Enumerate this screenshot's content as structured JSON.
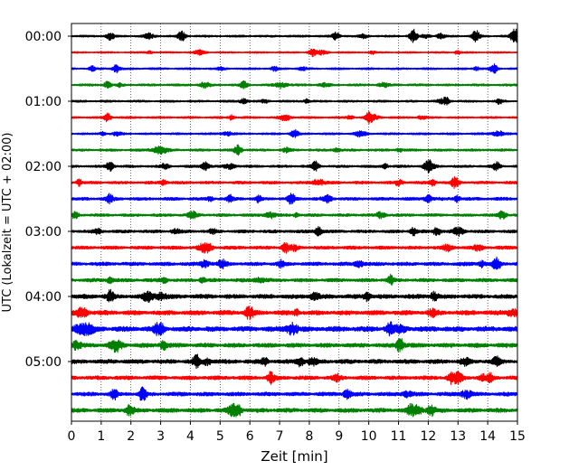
{
  "chart_data": {
    "type": "line",
    "title": "",
    "xlabel": "Zeit  [min]",
    "ylabel": "UTC (Lokalzeit = UTC + 02:00)",
    "xlim": [
      0,
      15
    ],
    "x_ticks": [
      0,
      1,
      2,
      3,
      4,
      5,
      6,
      7,
      8,
      9,
      10,
      11,
      12,
      13,
      14,
      15
    ],
    "y_ticks": [
      "00:00",
      "01:00",
      "02:00",
      "03:00",
      "04:00",
      "05:00"
    ],
    "trace_interval_min": 15,
    "trace_count": 24,
    "first_trace": "00:00",
    "grid": "vertical dotted at each minute",
    "trace_colors": [
      "#000000",
      "#ff0000",
      "#0000ff",
      "#008000"
    ],
    "noise_amplitude_by_trace": [
      0.15,
      0.12,
      0.14,
      0.16,
      0.15,
      0.15,
      0.15,
      0.17,
      0.18,
      0.2,
      0.22,
      0.2,
      0.22,
      0.24,
      0.26,
      0.25,
      0.3,
      0.32,
      0.36,
      0.3,
      0.3,
      0.28,
      0.28,
      0.3
    ],
    "events": [
      {
        "trace": 0,
        "t": 1.3,
        "amp": 0.5
      },
      {
        "trace": 0,
        "t": 3.7,
        "amp": 0.7
      },
      {
        "trace": 0,
        "t": 8.9,
        "amp": 0.5
      },
      {
        "trace": 0,
        "t": 11.5,
        "amp": 0.9
      },
      {
        "trace": 0,
        "t": 13.6,
        "amp": 0.8
      },
      {
        "trace": 0,
        "t": 14.9,
        "amp": 0.8
      },
      {
        "trace": 1,
        "t": 8.1,
        "amp": 0.5
      },
      {
        "trace": 2,
        "t": 1.5,
        "amp": 0.5
      },
      {
        "trace": 2,
        "t": 14.2,
        "amp": 0.6
      },
      {
        "trace": 3,
        "t": 1.2,
        "amp": 0.4
      },
      {
        "trace": 3,
        "t": 5.8,
        "amp": 0.5
      },
      {
        "trace": 4,
        "t": 12.6,
        "amp": 0.5
      },
      {
        "trace": 5,
        "t": 1.2,
        "amp": 0.6
      },
      {
        "trace": 5,
        "t": 10.0,
        "amp": 0.6
      },
      {
        "trace": 6,
        "t": 7.5,
        "amp": 0.5
      },
      {
        "trace": 7,
        "t": 5.6,
        "amp": 0.6
      },
      {
        "trace": 8,
        "t": 1.3,
        "amp": 0.6
      },
      {
        "trace": 8,
        "t": 4.5,
        "amp": 0.6
      },
      {
        "trace": 8,
        "t": 8.2,
        "amp": 0.6
      },
      {
        "trace": 8,
        "t": 14.3,
        "amp": 0.6
      },
      {
        "trace": 9,
        "t": 12.9,
        "amp": 0.7
      },
      {
        "trace": 10,
        "t": 1.3,
        "amp": 0.6
      },
      {
        "trace": 10,
        "t": 7.4,
        "amp": 0.7
      },
      {
        "trace": 10,
        "t": 12.0,
        "amp": 0.5
      },
      {
        "trace": 11,
        "t": 14.5,
        "amp": 0.6
      },
      {
        "trace": 12,
        "t": 8.3,
        "amp": 0.6
      },
      {
        "trace": 12,
        "t": 12.3,
        "amp": 0.6
      },
      {
        "trace": 13,
        "t": 7.2,
        "amp": 0.6
      },
      {
        "trace": 14,
        "t": 14.3,
        "amp": 0.8
      },
      {
        "trace": 16,
        "t": 1.3,
        "amp": 0.7
      },
      {
        "trace": 17,
        "t": 6.0,
        "amp": 0.7
      },
      {
        "trace": 18,
        "t": 10.7,
        "amp": 0.9
      },
      {
        "trace": 18,
        "t": 3.0,
        "amp": 0.6
      },
      {
        "trace": 19,
        "t": 3.1,
        "amp": 0.6
      },
      {
        "trace": 20,
        "t": 4.2,
        "amp": 0.8
      },
      {
        "trace": 20,
        "t": 14.3,
        "amp": 0.6
      },
      {
        "trace": 21,
        "t": 6.7,
        "amp": 0.7
      },
      {
        "trace": 22,
        "t": 2.4,
        "amp": 0.6
      },
      {
        "trace": 23,
        "t": 5.6,
        "amp": 0.6
      }
    ]
  }
}
